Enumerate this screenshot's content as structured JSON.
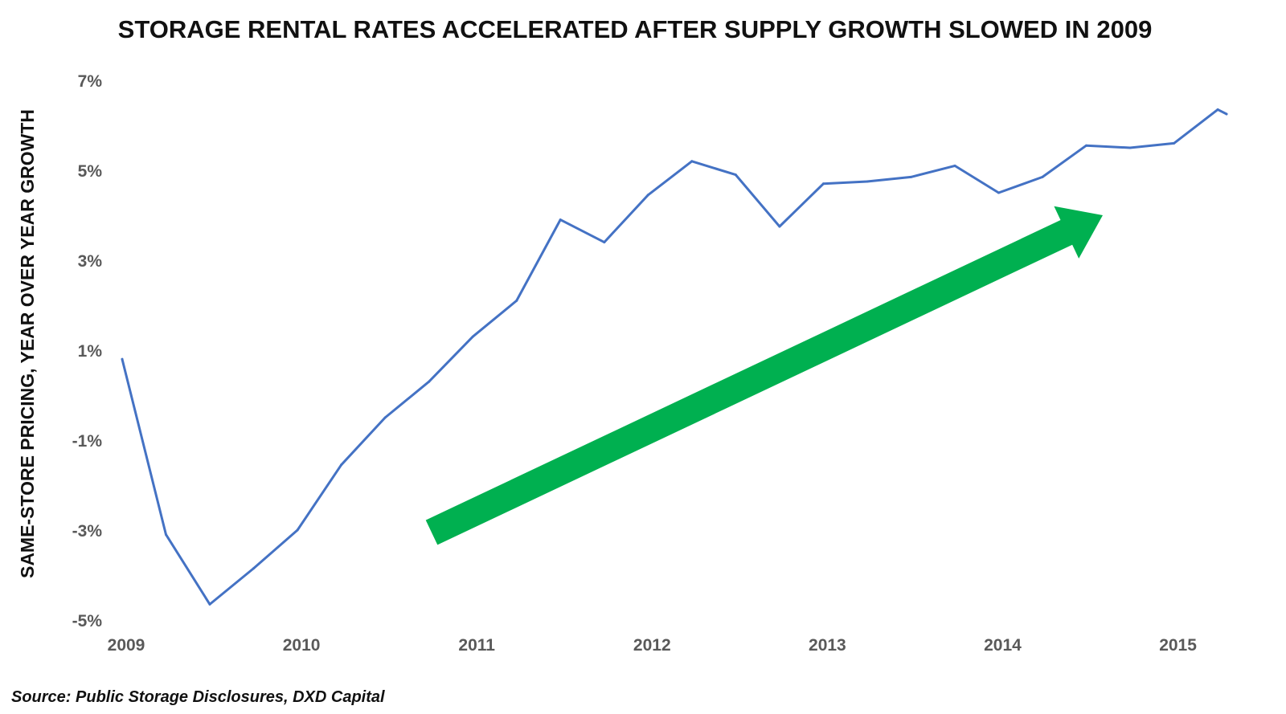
{
  "chart_data": {
    "type": "line",
    "title": "STORAGE RENTAL RATES ACCELERATED AFTER SUPPLY GROWTH SLOWED IN 2009",
    "ylabel": "SAME-STORE PRICING, YEAR OVER YEAR GROWTH",
    "xlabel": "",
    "x_tick_labels": [
      "2009",
      "2010",
      "2011",
      "2012",
      "2013",
      "2014",
      "2015"
    ],
    "y_tick_labels": [
      "7%",
      "5%",
      "3%",
      "1%",
      "-1%",
      "-3%",
      "-5%"
    ],
    "ylim": [
      -5,
      7
    ],
    "xlim": [
      2009,
      2015.3
    ],
    "grid": false,
    "legend": "none",
    "series": [
      {
        "color": "#4472C4",
        "x": [
          2009.0,
          2009.25,
          2009.5,
          2009.75,
          2010.0,
          2010.25,
          2010.5,
          2010.75,
          2011.0,
          2011.25,
          2011.5,
          2011.75,
          2012.0,
          2012.25,
          2012.5,
          2012.75,
          2013.0,
          2013.25,
          2013.5,
          2013.75,
          2014.0,
          2014.25,
          2014.5,
          2014.75,
          2015.0,
          2015.25,
          2015.3
        ],
        "y": [
          0.8,
          -3.1,
          -4.65,
          -3.85,
          -3.0,
          -1.55,
          -0.5,
          0.3,
          1.3,
          2.1,
          3.9,
          3.4,
          4.45,
          5.2,
          4.9,
          3.75,
          4.7,
          4.75,
          4.85,
          5.1,
          4.5,
          4.85,
          5.55,
          5.5,
          5.6,
          6.35,
          6.25
        ]
      }
    ],
    "annotation": {
      "type": "arrow",
      "color": "#00B050",
      "direction": "up-right"
    },
    "source": "Source: Public Storage Disclosures, DXD Capital"
  }
}
